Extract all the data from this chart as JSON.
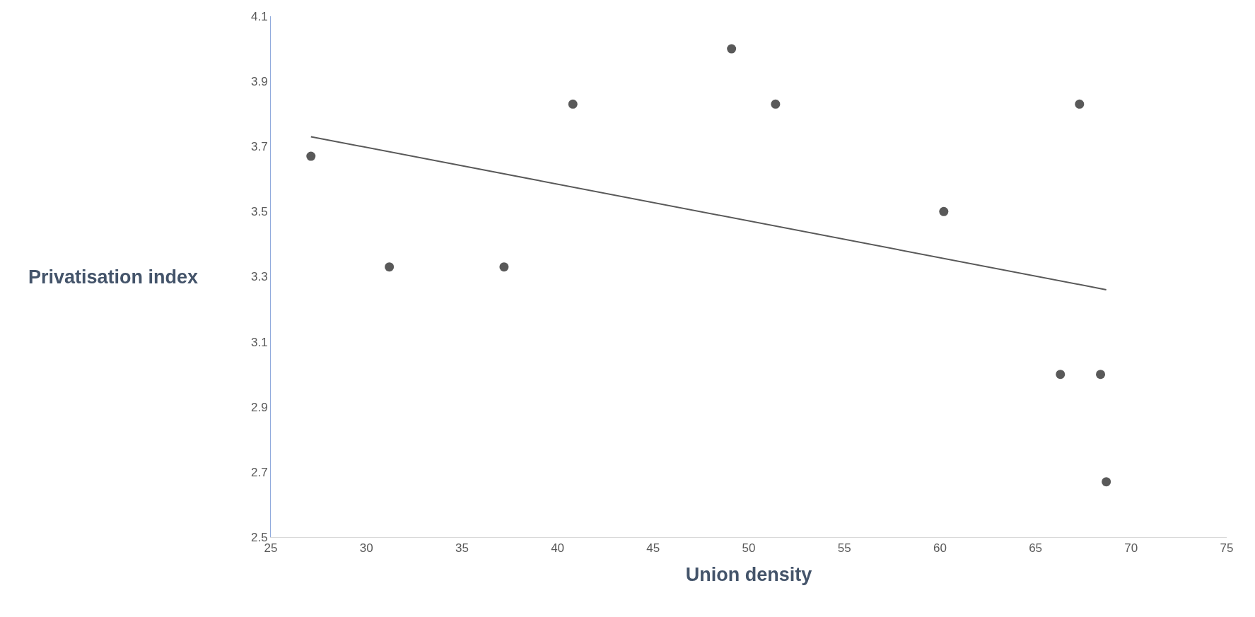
{
  "chart_data": {
    "type": "scatter",
    "xlabel": "Union density",
    "ylabel": "Privatisation index",
    "xlim": [
      25,
      75
    ],
    "xticks": [
      25,
      30,
      35,
      40,
      45,
      50,
      55,
      60,
      65,
      70,
      75
    ],
    "ylim": [
      2.5,
      4.1
    ],
    "yticks": [
      2.5,
      2.7,
      2.9,
      3.1,
      3.3,
      3.5,
      3.7,
      3.9,
      4.1
    ],
    "series": [
      {
        "color": "#595959",
        "marker": "circle",
        "x": [
          27.1,
          31.2,
          37.2,
          40.8,
          49.1,
          51.4,
          60.2,
          66.3,
          67.3,
          68.4,
          68.7
        ],
        "values": [
          3.67,
          3.33,
          3.33,
          3.83,
          4.0,
          3.83,
          3.5,
          3.0,
          3.83,
          3.0,
          2.67
        ]
      },
      {
        "type": "line",
        "color": "#595959",
        "marker": "none",
        "line_style": "solid",
        "x": [
          27.1,
          68.7
        ],
        "values": [
          3.73,
          3.26
        ]
      }
    ]
  }
}
